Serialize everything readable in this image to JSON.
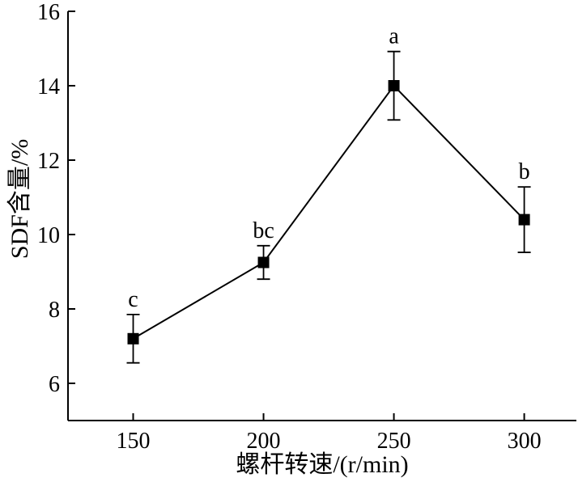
{
  "chart_data": {
    "type": "line",
    "title": "",
    "xlabel": "螺杆转速/(r/min)",
    "ylabel": "SDF含量/%",
    "x": [
      150,
      200,
      250,
      300
    ],
    "x_tick_labels": [
      "150",
      "200",
      "250",
      "300"
    ],
    "y_tick_labels": [
      "6",
      "8",
      "10",
      "12",
      "14",
      "16"
    ],
    "xlim": [
      125,
      320
    ],
    "ylim": [
      5.0,
      16.0
    ],
    "y_ticks": [
      6,
      8,
      10,
      12,
      14,
      16
    ],
    "grid": false,
    "legend": "none",
    "series": [
      {
        "values": [
          7.2,
          9.25,
          14.0,
          10.4
        ],
        "errors": [
          0.65,
          0.45,
          0.92,
          0.88
        ],
        "labels": [
          "c",
          "bc",
          "a",
          "b"
        ],
        "marker": "square",
        "color": "#000000"
      }
    ]
  }
}
